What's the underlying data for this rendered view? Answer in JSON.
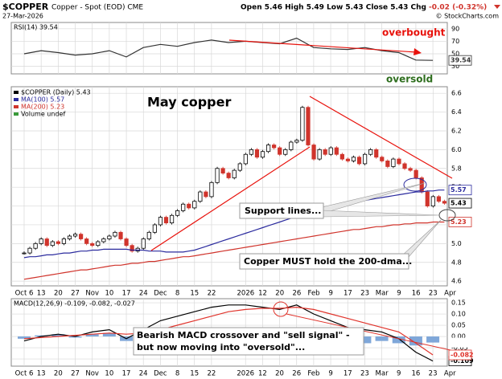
{
  "header": {
    "ticker": "$COPPER",
    "description": "Copper - Spot (EOD) CME",
    "date": "27-Mar-2026",
    "quote": "Open 5.46 High 5.49 Low 5.43 Close 5.43 Chg",
    "change": "-0.02 (-0.32%)",
    "source": "© StockCharts.com"
  },
  "chart_data": [
    {
      "type": "line",
      "title": "RSI(14) 39.54",
      "series": [
        {
          "color": "#333333",
          "values": [
            50,
            55,
            52,
            48,
            50,
            55,
            45,
            60,
            65,
            62,
            68,
            72,
            68,
            70,
            68,
            66,
            75,
            60,
            58,
            57,
            60,
            55,
            52,
            40,
            39.54,
            null
          ]
        }
      ],
      "ylim": [
        18,
        100
      ],
      "yticks": [
        90,
        70,
        50,
        30
      ],
      "grid": true,
      "annotations": [
        {
          "text": "overbought",
          "color": "#e8120c"
        },
        {
          "text": "oversold",
          "color": "#2e6e1e"
        }
      ]
    },
    {
      "type": "candlestick",
      "title": "May copper",
      "categories": [
        "Oct 6",
        null,
        null,
        "13",
        null,
        null,
        "20",
        null,
        null,
        "27",
        null,
        null,
        "Nov",
        null,
        null,
        "10",
        null,
        null,
        "17",
        null,
        null,
        "24",
        null,
        null,
        "Dec",
        null,
        null,
        "8",
        null,
        null,
        "15",
        null,
        null,
        "22",
        null,
        null,
        null,
        null,
        null,
        "2026",
        null,
        null,
        "12",
        null,
        null,
        "20",
        null,
        null,
        "26",
        null,
        null,
        "Feb",
        null,
        null,
        "9",
        null,
        null,
        "17",
        null,
        null,
        "23",
        null,
        null,
        "Mar",
        null,
        null,
        "9",
        null,
        null,
        "16",
        null,
        null,
        "23",
        null,
        null,
        "Apr"
      ],
      "series": [
        {
          "name": "$COPPER (Daily) 5.43",
          "color": "#000000",
          "down_color": "#d0342c",
          "style": "candle",
          "values": [
            4.9,
            4.95,
            5.0,
            5.05,
            4.98,
            5.02,
            5.0,
            5.05,
            5.08,
            5.1,
            5.05,
            5.0,
            4.98,
            5.02,
            5.05,
            5.08,
            5.12,
            5.05,
            4.98,
            4.92,
            4.95,
            5.05,
            5.12,
            5.2,
            5.28,
            5.22,
            5.3,
            5.35,
            5.42,
            5.38,
            5.45,
            5.55,
            5.5,
            5.65,
            5.8,
            5.75,
            5.7,
            5.78,
            5.85,
            5.95,
            6.0,
            5.92,
            5.98,
            6.05,
            6.02,
            5.95,
            6.0,
            6.08,
            6.1,
            6.45,
            6.05,
            5.9,
            6.0,
            5.95,
            6.02,
            5.95,
            5.9,
            5.88,
            5.92,
            5.85,
            5.95,
            6.0,
            5.92,
            5.88,
            5.82,
            5.9,
            5.85,
            5.8,
            5.78,
            5.7,
            5.55,
            5.4,
            5.5,
            5.45,
            5.43,
            null
          ]
        },
        {
          "name": "MA(100) 5.57",
          "color": "#2b2b9e",
          "style": "line",
          "values": [
            4.85,
            4.86,
            4.86,
            4.87,
            4.88,
            4.88,
            4.89,
            4.9,
            4.9,
            4.91,
            4.92,
            4.92,
            4.93,
            4.93,
            4.94,
            4.94,
            4.94,
            4.94,
            4.94,
            4.93,
            4.93,
            4.93,
            4.92,
            4.92,
            4.92,
            4.91,
            4.91,
            4.91,
            4.91,
            4.92,
            4.93,
            4.95,
            4.97,
            4.99,
            5.01,
            5.03,
            5.05,
            5.07,
            5.09,
            5.11,
            5.13,
            5.15,
            5.17,
            5.19,
            5.21,
            5.23,
            5.25,
            5.27,
            5.29,
            5.31,
            5.33,
            5.35,
            5.37,
            5.38,
            5.4,
            5.41,
            5.42,
            5.43,
            5.44,
            5.45,
            5.46,
            5.47,
            5.48,
            5.49,
            5.5,
            5.51,
            5.52,
            5.53,
            5.54,
            5.55,
            5.55,
            5.56,
            5.56,
            5.57,
            5.57,
            null
          ]
        },
        {
          "name": "MA(200) 5.23",
          "color": "#d0342c",
          "style": "line",
          "values": [
            4.62,
            4.63,
            4.64,
            4.65,
            4.66,
            4.67,
            4.68,
            4.69,
            4.7,
            4.71,
            4.72,
            4.72,
            4.73,
            4.74,
            4.75,
            4.76,
            4.77,
            4.77,
            4.78,
            4.79,
            4.79,
            4.8,
            4.81,
            4.81,
            4.82,
            4.83,
            4.84,
            4.85,
            4.86,
            4.86,
            4.87,
            4.88,
            4.89,
            4.9,
            4.91,
            4.92,
            4.93,
            4.94,
            4.95,
            4.96,
            4.97,
            4.98,
            4.99,
            5.0,
            5.01,
            5.02,
            5.03,
            5.04,
            5.05,
            5.06,
            5.07,
            5.08,
            5.09,
            5.1,
            5.11,
            5.12,
            5.13,
            5.14,
            5.15,
            5.15,
            5.16,
            5.17,
            5.18,
            5.18,
            5.19,
            5.2,
            5.2,
            5.21,
            5.21,
            5.22,
            5.22,
            5.22,
            5.23,
            5.23,
            5.23,
            null
          ]
        }
      ],
      "volume_label": "Volume undef",
      "ylim": [
        4.55,
        6.67
      ],
      "yticks": [
        6.6,
        6.4,
        6.2,
        {
          "value": 6,
          "label": "6.0"
        },
        5.8,
        5.6,
        5.4,
        5.2,
        {
          "value": 5,
          "label": "5.0"
        },
        4.8,
        4.6
      ],
      "grid": true,
      "annotations": [
        {
          "text": "Support lines..."
        },
        {
          "text": "Copper MUST hold the 200-dma..."
        }
      ]
    },
    {
      "type": "line",
      "title": "MACD(12,26,9) -0.109, -0.082, -0.027",
      "categories": [
        "Oct 6",
        "13",
        "20",
        "27",
        "Nov",
        "10",
        "17",
        "24",
        "Dec",
        "8",
        "15",
        "22",
        null,
        "2026",
        "12",
        "20",
        "26",
        "Feb",
        "9",
        "17",
        "23",
        "Mar",
        "9",
        "16",
        "23",
        "Apr"
      ],
      "series": [
        {
          "color": "#7fa7d9",
          "style": "bar",
          "values": [
            -0.01,
            0.005,
            0.01,
            -0.005,
            0.01,
            0.015,
            -0.02,
            0.015,
            0.04,
            0.04,
            0.04,
            0.04,
            0.03,
            0.02,
            0.005,
            -0.005,
            0.01,
            -0.02,
            -0.03,
            -0.04,
            -0.03,
            -0.02,
            -0.03,
            -0.04,
            -0.027,
            null
          ]
        },
        {
          "color": "#000000",
          "style": "line",
          "values": [
            -0.02,
            0,
            0.01,
            0,
            0.02,
            0.03,
            -0.01,
            0.03,
            0.07,
            0.09,
            0.11,
            0.13,
            0.14,
            0.14,
            0.13,
            0.12,
            0.14,
            0.1,
            0.07,
            0.04,
            0.03,
            0.02,
            -0.01,
            -0.07,
            -0.109,
            null
          ]
        },
        {
          "color": "#e0342c",
          "style": "line",
          "values": [
            -0.01,
            -0.005,
            0,
            0.005,
            0.01,
            0.015,
            0.01,
            0.015,
            0.03,
            0.05,
            0.07,
            0.09,
            0.11,
            0.12,
            0.125,
            0.125,
            0.13,
            0.12,
            0.1,
            0.08,
            0.06,
            0.04,
            0.02,
            -0.03,
            -0.082,
            null
          ]
        }
      ],
      "ylim": [
        -0.132,
        0.168
      ],
      "yticks": [
        0.15,
        {
          "value": 0.1,
          "label": "0.10"
        },
        0.05,
        {
          "value": 0,
          "label": "0.00"
        },
        -0.05,
        {
          "value": -0.1,
          "label": "-0.10"
        }
      ],
      "grid": true,
      "annotations": [
        {
          "text": "Bearish MACD crossover and \"sell signal\" -"
        },
        {
          "text": "but now moving into \"oversold\"..."
        }
      ]
    }
  ]
}
